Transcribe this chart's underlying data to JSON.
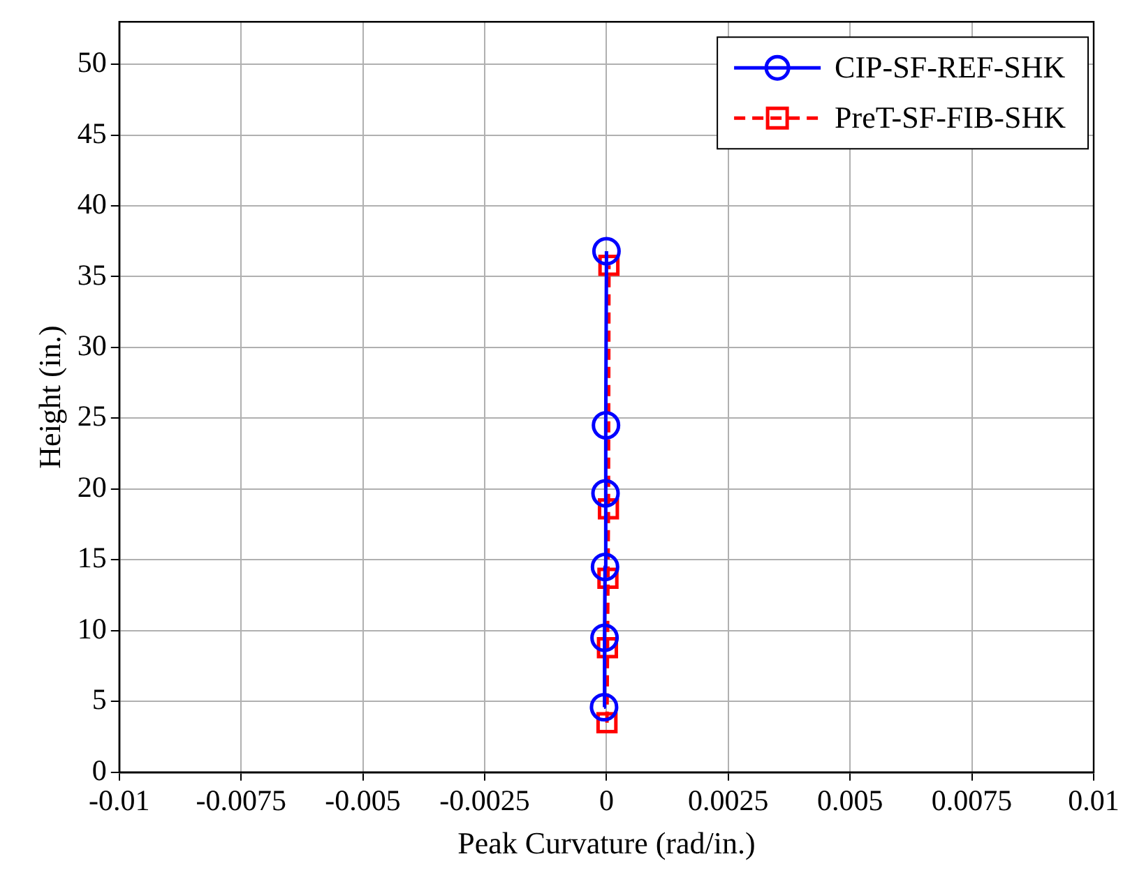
{
  "chart_data": {
    "type": "line",
    "xlabel": "Peak Curvature (rad/in.)",
    "ylabel": "Height (in.)",
    "xlim": [
      -0.01,
      0.01
    ],
    "xticks": [
      -0.01,
      -0.0075,
      -0.005,
      -0.0025,
      0,
      0.0025,
      0.005,
      0.0075,
      0.01
    ],
    "ylim": [
      0,
      53
    ],
    "yticks": [
      0,
      5,
      10,
      15,
      20,
      25,
      30,
      35,
      40,
      45,
      50
    ],
    "grid": true,
    "legend": "top right",
    "series": [
      {
        "name": "CIP-SF-REF-SHK",
        "color": "#0000ff",
        "marker": "circle",
        "line_style": "solid",
        "x": [
          -5e-05,
          -4e-05,
          -3e-05,
          -2e-05,
          -1e-05,
          0
        ],
        "values": [
          4.6,
          9.5,
          14.5,
          19.7,
          24.5,
          36.8
        ]
      },
      {
        "name": "PreT-SF-FIB-SHK",
        "color": "#ff0000",
        "marker": "square",
        "line_style": "dashed",
        "x": [
          1e-05,
          2e-05,
          3e-05,
          4e-05,
          5e-05
        ],
        "values": [
          3.5,
          8.8,
          13.7,
          18.6,
          35.8
        ]
      }
    ]
  }
}
